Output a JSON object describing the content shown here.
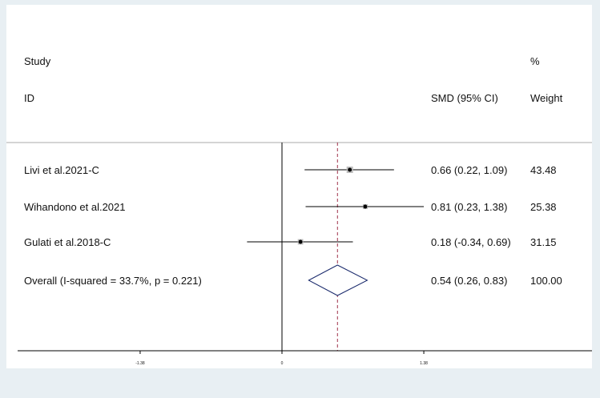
{
  "chart_data": {
    "type": "forest",
    "headers": {
      "study_line1": "Study",
      "study_line2": "ID",
      "effect": "SMD (95% CI)",
      "weight_line1": "%",
      "weight_line2": "Weight"
    },
    "studies": [
      {
        "label": "Livi et al.2021-C",
        "estimate": 0.66,
        "lower": 0.22,
        "upper": 1.09,
        "ci_text": "0.66 (0.22, 1.09)",
        "weight": 43.48,
        "weight_text": "43.48"
      },
      {
        "label": "Wihandono et al.2021",
        "estimate": 0.81,
        "lower": 0.23,
        "upper": 1.38,
        "ci_text": "0.81 (0.23, 1.38)",
        "weight": 25.38,
        "weight_text": "25.38"
      },
      {
        "label": "Gulati et al.2018-C",
        "estimate": 0.18,
        "lower": -0.34,
        "upper": 0.69,
        "ci_text": "0.18 (-0.34, 0.69)",
        "weight": 31.15,
        "weight_text": "31.15"
      }
    ],
    "overall": {
      "label": "Overall  (I-squared = 33.7%, p = 0.221)",
      "estimate": 0.54,
      "lower": 0.26,
      "upper": 0.83,
      "ci_text": "0.54 (0.26, 0.83)",
      "weight_text": "100.00"
    },
    "x_ticks": [
      {
        "value": -1.38,
        "label": "-1.38"
      },
      {
        "value": 0,
        "label": "0"
      },
      {
        "value": 1.38,
        "label": "1.38"
      }
    ],
    "xlim": [
      -1.38,
      1.38
    ],
    "null_line": 0,
    "colors": {
      "page_background": "#e8eff3",
      "panel": "#ffffff",
      "ci_line": "#000000",
      "diamond": "#1a2a6c",
      "overall_line": "#a0304a",
      "weight_box": "#bdbdbd"
    }
  }
}
